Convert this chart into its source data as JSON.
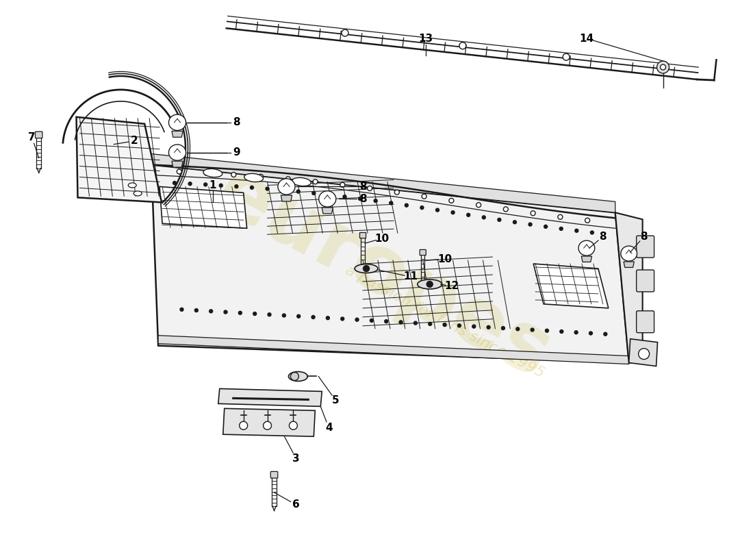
{
  "background_color": "#ffffff",
  "line_color": "#1a1a1a",
  "watermark_color": "#c8b430",
  "fig_width": 11.0,
  "fig_height": 8.0,
  "dpi": 100,
  "labels": [
    [
      "1",
      310,
      530
    ],
    [
      "2",
      195,
      595
    ],
    [
      "3",
      430,
      130
    ],
    [
      "4",
      480,
      175
    ],
    [
      "5",
      490,
      215
    ],
    [
      "6",
      430,
      60
    ],
    [
      "7",
      45,
      590
    ],
    [
      "8",
      345,
      625
    ],
    [
      "9",
      345,
      582
    ],
    [
      "8",
      530,
      530
    ],
    [
      "8",
      530,
      510
    ],
    [
      "10",
      555,
      450
    ],
    [
      "10",
      648,
      423
    ],
    [
      "11",
      600,
      396
    ],
    [
      "12",
      660,
      380
    ],
    [
      "13",
      620,
      745
    ],
    [
      "14",
      855,
      745
    ],
    [
      "8",
      880,
      455
    ],
    [
      "8",
      940,
      455
    ]
  ]
}
